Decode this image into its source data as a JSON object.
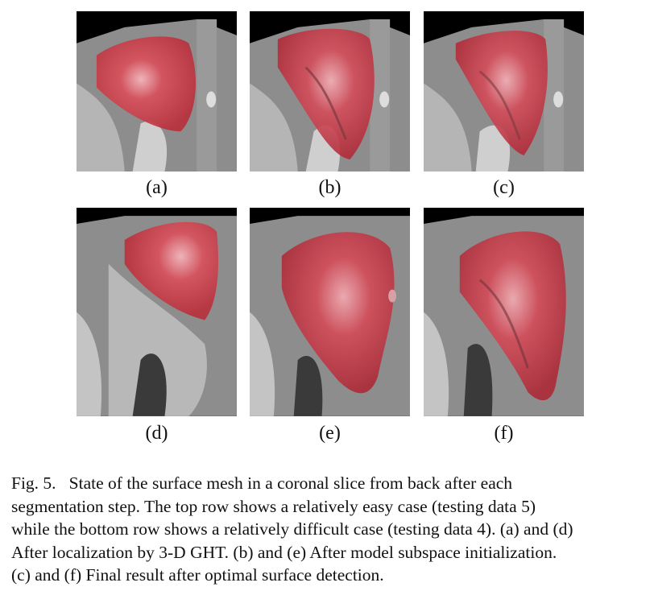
{
  "figure": {
    "panels": [
      {
        "id": "a",
        "label": "(a)"
      },
      {
        "id": "b",
        "label": "(b)"
      },
      {
        "id": "c",
        "label": "(c)"
      },
      {
        "id": "d",
        "label": "(d)"
      },
      {
        "id": "e",
        "label": "(e)"
      },
      {
        "id": "f",
        "label": "(f)"
      }
    ],
    "caption": {
      "lines": [
        "Fig. 5.   State of the surface mesh in a coronal slice from back after each",
        "segmentation step. The top row shows a relatively easy case (testing data 5)",
        "while the bottom row shows a relatively difficult case (testing data 4). (a) and (d)",
        "After localization by 3-D GHT. (b) and (e) After model subspace initialization.",
        "(c) and (f) Final result after optimal surface detection."
      ]
    },
    "colors": {
      "overlay": "#d83a4a",
      "tissue": "#8a8a8a"
    }
  }
}
